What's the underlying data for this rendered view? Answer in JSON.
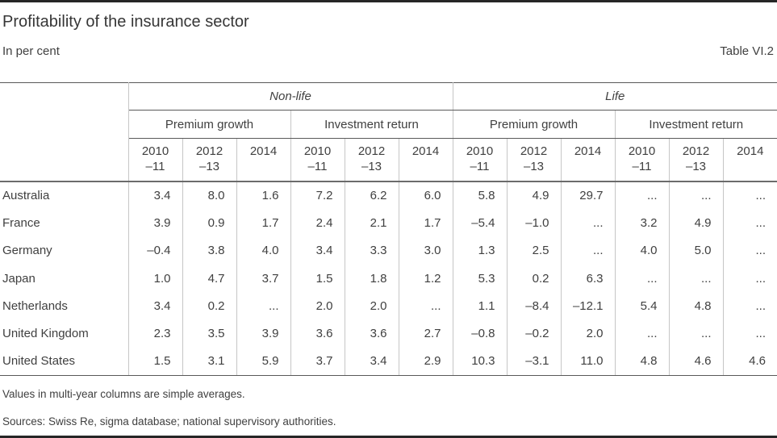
{
  "header": {
    "title": "Profitability of the insurance sector",
    "subtitle": "In per cent",
    "table_label": "Table VI.2"
  },
  "table": {
    "groups": [
      {
        "label": "Non-life",
        "subgroups": [
          "Premium growth",
          "Investment return"
        ]
      },
      {
        "label": "Life",
        "subgroups": [
          "Premium growth",
          "Investment return"
        ]
      }
    ],
    "year_cols": [
      {
        "line1": "2010",
        "line2": "–11"
      },
      {
        "line1": "2012",
        "line2": "–13"
      },
      {
        "line1": "2014",
        "line2": ""
      }
    ],
    "rows": [
      {
        "country": "Australia",
        "values": [
          "3.4",
          "8.0",
          "1.6",
          "7.2",
          "6.2",
          "6.0",
          "5.8",
          "4.9",
          "29.7",
          "...",
          "...",
          "..."
        ]
      },
      {
        "country": "France",
        "values": [
          "3.9",
          "0.9",
          "1.7",
          "2.4",
          "2.1",
          "1.7",
          "–5.4",
          "–1.0",
          "...",
          "3.2",
          "4.9",
          "..."
        ]
      },
      {
        "country": "Germany",
        "values": [
          "–0.4",
          "3.8",
          "4.0",
          "3.4",
          "3.3",
          "3.0",
          "1.3",
          "2.5",
          "...",
          "4.0",
          "5.0",
          "..."
        ]
      },
      {
        "country": "Japan",
        "values": [
          "1.0",
          "4.7",
          "3.7",
          "1.5",
          "1.8",
          "1.2",
          "5.3",
          "0.2",
          "6.3",
          "...",
          "...",
          "..."
        ]
      },
      {
        "country": "Netherlands",
        "values": [
          "3.4",
          "0.2",
          "...",
          "2.0",
          "2.0",
          "...",
          "1.1",
          "–8.4",
          "–12.1",
          "5.4",
          "4.8",
          "..."
        ]
      },
      {
        "country": "United Kingdom",
        "values": [
          "2.3",
          "3.5",
          "3.9",
          "3.6",
          "3.6",
          "2.7",
          "–0.8",
          "–0.2",
          "2.0",
          "...",
          "...",
          "..."
        ]
      },
      {
        "country": "United States",
        "values": [
          "1.5",
          "3.1",
          "5.9",
          "3.7",
          "3.4",
          "2.9",
          "10.3",
          "–3.1",
          "11.0",
          "4.8",
          "4.6",
          "4.6"
        ]
      }
    ]
  },
  "footnotes": {
    "note": "Values in multi-year columns are simple averages.",
    "sources": "Sources: Swiss Re, sigma database; national supervisory authorities."
  },
  "colors": {
    "page_border": "#262626",
    "rule_dark": "#595959",
    "rule_medium": "#6b6b6b",
    "rule_light": "#c6c6c6",
    "text": "#404040"
  }
}
